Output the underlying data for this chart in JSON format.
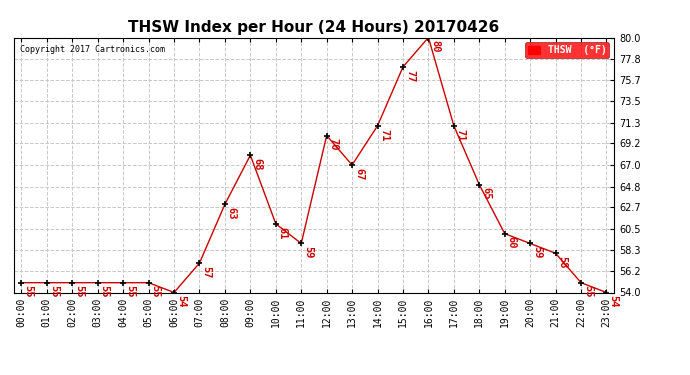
{
  "title": "THSW Index per Hour (24 Hours) 20170426",
  "copyright": "Copyright 2017 Cartronics.com",
  "legend_label": "THSW  (°F)",
  "hours": [
    0,
    1,
    2,
    3,
    4,
    5,
    6,
    7,
    8,
    9,
    10,
    11,
    12,
    13,
    14,
    15,
    16,
    17,
    18,
    19,
    20,
    21,
    22,
    23
  ],
  "values": [
    55,
    55,
    55,
    55,
    55,
    55,
    54,
    57,
    63,
    68,
    61,
    59,
    70,
    67,
    71,
    77,
    80,
    71,
    65,
    60,
    59,
    58,
    55,
    54
  ],
  "ylim_min": 54.0,
  "ylim_max": 80.0,
  "yticks": [
    54.0,
    56.2,
    58.3,
    60.5,
    62.7,
    64.8,
    67.0,
    69.2,
    71.3,
    73.5,
    75.7,
    77.8,
    80.0
  ],
  "line_color": "#cc0000",
  "marker_color": "#000000",
  "label_color": "#cc0000",
  "background_color": "#ffffff",
  "grid_color": "#c8c8c8",
  "title_fontsize": 11,
  "tick_fontsize": 7,
  "annotation_fontsize": 7.5
}
